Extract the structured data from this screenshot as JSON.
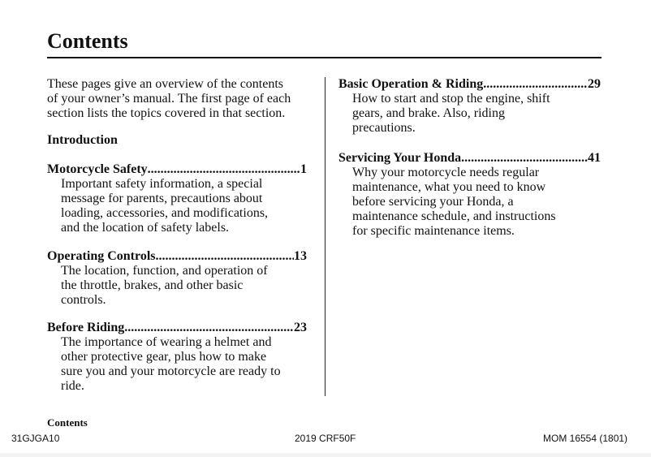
{
  "title": "Contents",
  "intro": {
    "lines": [
      "These pages give an overview of the contents",
      "of your owner’s manual. The first page of each",
      "section lists the topics covered in that section."
    ],
    "section_heading": "Introduction"
  },
  "entries": [
    {
      "title": "Motorcycle Safety",
      "page": "1",
      "lines": [
        "Important safety information, a special",
        "message for parents, precautions about",
        "loading, accessories, and modifications,",
        "and the location of safety labels."
      ]
    },
    {
      "title": "Operating Controls",
      "page": "13",
      "lines": [
        "The location, function, and operation of",
        "the throttle, brakes, and other basic",
        "controls."
      ]
    },
    {
      "title": "Before Riding",
      "page": " 23",
      "lines": [
        "The importance of wearing a helmet and",
        "other protective gear, plus how to make",
        "sure you and your motorcycle are ready to",
        "ride."
      ]
    },
    {
      "title": "Basic Operation & Riding",
      "page": "29",
      "lines": [
        "How to start and stop the engine, shift",
        "gears, and brake. Also, riding",
        "precautions."
      ]
    },
    {
      "title": "Servicing Your Honda",
      "page": "41",
      "lines": [
        "Why your motorcycle needs regular",
        "maintenance, what you need to know",
        "before servicing your Honda, a",
        "maintenance schedule, and instructions",
        "for specific maintenance items."
      ]
    }
  ],
  "footer": {
    "section": "Contents",
    "code": "31GJGA10",
    "model": "2019 CRF50F",
    "doc": "MOM 16554 (1801)"
  }
}
